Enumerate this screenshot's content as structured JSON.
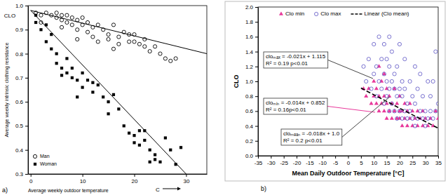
{
  "chart_data": [
    {
      "type": "scatter",
      "xlabel": "Average weekly outdoor temperature",
      "ylabel": "Average weekly intrinsic clothing resistance",
      "xlim": [
        -0.5,
        34
      ],
      "ylim": [
        0.3,
        1.0
      ],
      "xticks": [
        0,
        10,
        20,
        30
      ],
      "yticks": [
        0.3,
        0.4,
        0.5,
        0.6,
        0.7,
        0.8,
        0.9,
        {
          "value": 1,
          "label": "1.0"
        }
      ],
      "grid": false,
      "legend": "lower left",
      "annotations": [
        {
          "lines": [
            "CLO"
          ]
        },
        {
          "lines": [
            "C"
          ]
        },
        {
          "lines": [
            "a)"
          ]
        }
      ],
      "series": [
        {
          "name": "Man",
          "color": "#000000",
          "marker": "circle-open",
          "x": [
            1,
            2,
            3,
            4,
            5,
            5,
            6,
            6,
            7,
            7,
            8,
            8,
            9,
            9,
            10,
            10,
            11,
            11,
            12,
            12,
            13,
            14,
            15,
            15,
            16,
            17,
            17,
            18,
            19,
            19,
            20,
            20,
            21,
            22,
            22,
            23,
            24,
            25,
            26,
            27,
            28,
            6,
            9,
            13,
            2,
            16
          ],
          "values": [
            0.97,
            0.96,
            0.97,
            0.96,
            0.97,
            0.95,
            0.96,
            0.94,
            0.96,
            0.93,
            0.95,
            0.92,
            0.94,
            0.9,
            0.92,
            0.95,
            0.93,
            0.89,
            0.91,
            0.87,
            0.92,
            0.9,
            0.88,
            0.86,
            0.92,
            0.87,
            0.84,
            0.89,
            0.88,
            0.85,
            0.88,
            0.85,
            0.84,
            0.86,
            0.83,
            0.81,
            0.83,
            0.8,
            0.78,
            0.77,
            0.78,
            0.91,
            0.86,
            0.85,
            0.93,
            0.82
          ],
          "trendline": {
            "x": [
              0,
              34
            ],
            "values": [
              0.98,
              0.8
            ]
          }
        },
        {
          "name": "Woman",
          "color": "#000000",
          "marker": "square",
          "x": [
            1,
            1,
            2,
            3,
            3,
            4,
            4,
            5,
            5,
            6,
            6,
            7,
            7,
            8,
            8,
            9,
            9,
            10,
            10,
            11,
            12,
            12,
            13,
            14,
            15,
            15,
            16,
            17,
            18,
            19,
            20,
            20,
            21,
            21,
            22,
            22,
            23,
            24,
            24,
            25,
            26,
            27,
            28,
            29,
            23
          ],
          "values": [
            0.96,
            0.93,
            0.9,
            0.92,
            0.85,
            0.88,
            0.82,
            0.8,
            0.76,
            0.74,
            0.71,
            0.72,
            0.78,
            0.74,
            0.7,
            0.69,
            0.62,
            0.72,
            0.66,
            0.69,
            0.68,
            0.64,
            0.67,
            0.62,
            0.6,
            0.55,
            0.63,
            0.57,
            0.5,
            0.47,
            0.46,
            0.43,
            0.48,
            0.42,
            0.48,
            0.44,
            0.4,
            0.38,
            0.36,
            0.35,
            0.45,
            0.4,
            0.34,
            0.41,
            0.35
          ],
          "trendline": {
            "x": [
              0,
              30
            ],
            "values": [
              0.98,
              0.3
            ]
          }
        }
      ]
    },
    {
      "type": "scatter",
      "xlabel": "Mean Daily Outdoor Temperature [°C]",
      "ylabel": "CLO",
      "xlim": [
        -35,
        35
      ],
      "ylim": [
        0,
        2
      ],
      "xticks": [
        -35,
        -30,
        -25,
        -20,
        -15,
        -10,
        -5,
        0,
        5,
        10,
        15,
        20,
        25,
        30,
        35
      ],
      "yticks": [
        {
          "value": 0,
          "label": "0.0"
        },
        0.2,
        0.4,
        0.6,
        0.8,
        {
          "value": 1,
          "label": "1.0"
        },
        1.2,
        1.4,
        1.6,
        1.8,
        {
          "value": 2,
          "label": "2.0"
        }
      ],
      "grid": false,
      "legend": "top",
      "annotations": [
        {
          "lines": [
            "cloₘₐₓ = -0.021x + 1.115",
            "R² = 0.19 p<0.01"
          ]
        },
        {
          "lines": [
            "cloₘᵢₙ = -0.014x + 0.852",
            "R² = 0.16p<0.01"
          ]
        },
        {
          "lines": [
            "cloₘₑₐₙ = -0.018x + 1.0",
            "R² = 0.2   p<0.01"
          ]
        },
        {
          "lines": [
            "b)"
          ]
        }
      ],
      "series": [
        {
          "name": "Clo min",
          "color": "#e8389a",
          "marker": "triangle",
          "x": [
            6,
            7,
            8,
            9,
            10,
            10,
            11,
            11,
            12,
            12,
            13,
            13,
            14,
            14,
            15,
            15,
            15,
            16,
            16,
            17,
            17,
            18,
            18,
            19,
            19,
            20,
            20,
            20,
            21,
            21,
            22,
            22,
            23,
            23,
            24,
            24,
            25,
            25,
            26,
            27,
            27,
            28,
            29,
            29,
            30,
            31,
            32,
            33,
            34,
            35,
            12,
            14
          ],
          "values": [
            0.9,
            0.8,
            0.9,
            0.7,
            0.8,
            1.0,
            0.7,
            0.9,
            0.6,
            0.8,
            0.7,
            1.0,
            0.6,
            0.8,
            0.5,
            0.7,
            0.9,
            0.6,
            0.8,
            0.5,
            0.7,
            0.6,
            0.9,
            0.5,
            0.7,
            0.5,
            0.6,
            0.8,
            0.4,
            0.6,
            0.5,
            0.7,
            0.4,
            0.6,
            0.5,
            0.7,
            0.4,
            0.6,
            0.5,
            0.4,
            0.6,
            0.5,
            0.4,
            0.6,
            0.5,
            0.4,
            0.5,
            0.4,
            0.6,
            0.5,
            1.2,
            1.1
          ]
        },
        {
          "name": "Clo max",
          "color": "#6b63c9",
          "marker": "circle-open",
          "x": [
            6,
            7,
            8,
            9,
            10,
            10,
            11,
            11,
            12,
            12,
            13,
            13,
            14,
            14,
            14,
            15,
            15,
            15,
            16,
            16,
            16,
            16,
            17,
            17,
            17,
            18,
            18,
            18,
            19,
            19,
            19,
            20,
            20,
            20,
            21,
            21,
            21,
            22,
            22,
            22,
            23,
            23,
            24,
            24,
            25,
            25,
            26,
            26,
            26,
            27,
            27,
            28,
            28,
            29,
            29,
            30,
            30,
            31,
            31,
            32,
            32,
            33,
            33,
            34,
            34,
            35
          ],
          "values": [
            1.2,
            1.0,
            1.3,
            0.9,
            1.1,
            1.5,
            0.8,
            1.2,
            1.0,
            1.6,
            0.9,
            1.3,
            0.7,
            1.1,
            1.5,
            0.8,
            1.0,
            1.3,
            0.6,
            0.9,
            1.2,
            1.6,
            0.7,
            1.0,
            1.4,
            0.6,
            0.9,
            1.1,
            0.5,
            0.8,
            1.2,
            0.6,
            0.9,
            1.5,
            0.5,
            0.8,
            1.0,
            0.6,
            0.9,
            1.3,
            0.5,
            0.7,
            0.6,
            1.0,
            0.5,
            0.8,
            0.4,
            0.7,
            1.2,
            0.5,
            0.9,
            0.6,
            1.1,
            0.5,
            0.8,
            0.4,
            0.6,
            0.5,
            1.0,
            0.6,
            0.8,
            0.5,
            1.0,
            0.6,
            1.4,
            0.7
          ]
        },
        {
          "name": "Linear (Clo mean)",
          "type": "line",
          "color": "#000000",
          "line_style": "dashed",
          "x": [
            5,
            35
          ],
          "values": [
            0.91,
            0.37
          ]
        }
      ]
    }
  ]
}
